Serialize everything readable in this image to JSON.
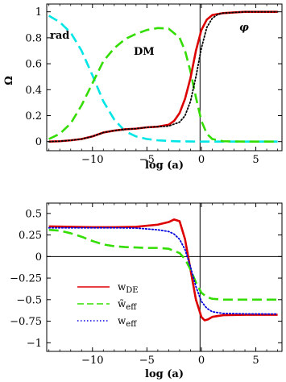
{
  "chart_data": [
    {
      "type": "line",
      "xlabel": "log (a)",
      "ylabel": "Ω",
      "xlim": [
        -14.2,
        7.4
      ],
      "ylim": [
        -0.07,
        1.06
      ],
      "xticks": [
        -10,
        -5,
        0,
        5
      ],
      "xtick_labels": [
        "−10",
        "−5",
        "0",
        "5"
      ],
      "yticks": [
        0,
        0.2,
        0.4,
        0.6,
        0.8,
        1
      ],
      "ytick_labels": [
        "0",
        "0.2",
        "0.4",
        "0.6",
        "0.8",
        "1"
      ],
      "annotations": [
        "rad",
        "DM",
        "φ"
      ],
      "grid": false,
      "series": [
        {
          "key": "rad",
          "style": "dashed",
          "color": "#00e5e5",
          "x": [
            -14,
            -13,
            -12,
            -11,
            -10,
            -9,
            -8,
            -7,
            -6,
            -5,
            -4,
            -3,
            -2,
            -1,
            0,
            2,
            4,
            7
          ],
          "y": [
            0.97,
            0.92,
            0.84,
            0.7,
            0.51,
            0.31,
            0.17,
            0.08,
            0.04,
            0.02,
            0.01,
            0.005,
            0.002,
            0.001,
            0,
            0,
            0,
            0
          ]
        },
        {
          "key": "dm",
          "style": "dashed",
          "color": "#33dd00",
          "x": [
            -14,
            -13,
            -12,
            -11,
            -10,
            -9,
            -8,
            -7,
            -6,
            -5,
            -4,
            -3,
            -2,
            -1.5,
            -1,
            -0.5,
            0,
            0.5,
            1,
            2,
            4,
            7
          ],
          "y": [
            0.02,
            0.06,
            0.14,
            0.28,
            0.45,
            0.62,
            0.72,
            0.79,
            0.83,
            0.86,
            0.875,
            0.87,
            0.8,
            0.7,
            0.54,
            0.34,
            0.16,
            0.06,
            0.02,
            0.003,
            0,
            0
          ]
        },
        {
          "key": "phi",
          "style": "solid",
          "color": "#dd0000",
          "x": [
            -14,
            -13,
            -12,
            -11,
            -10,
            -9,
            -8,
            -7,
            -6,
            -5,
            -4,
            -3,
            -2.5,
            -2,
            -1.5,
            -1,
            -0.5,
            0,
            0.5,
            1,
            2,
            3,
            4,
            7
          ],
          "y": [
            0,
            0.003,
            0.01,
            0.02,
            0.04,
            0.07,
            0.085,
            0.095,
            0.1,
            0.11,
            0.115,
            0.13,
            0.16,
            0.22,
            0.33,
            0.49,
            0.7,
            0.86,
            0.94,
            0.975,
            0.99,
            0.995,
            1,
            1
          ]
        },
        {
          "key": "phi_dotted",
          "style": "dotted",
          "color": "#000000",
          "x": [
            -14,
            -13,
            -12,
            -11,
            -10,
            -9,
            -8,
            -7,
            -6,
            -5,
            -4,
            -3,
            -2,
            -1.5,
            -1,
            -0.5,
            0,
            0.5,
            1,
            1.5,
            2,
            3,
            4,
            7
          ],
          "y": [
            0,
            0.003,
            0.01,
            0.02,
            0.04,
            0.07,
            0.085,
            0.095,
            0.1,
            0.11,
            0.115,
            0.12,
            0.15,
            0.2,
            0.31,
            0.5,
            0.72,
            0.88,
            0.95,
            0.98,
            0.99,
            0.995,
            1,
            1
          ]
        }
      ]
    },
    {
      "type": "line",
      "xlabel": "log (a)",
      "ylabel": "",
      "xlim": [
        -14.2,
        7.4
      ],
      "ylim": [
        -1.1,
        0.62
      ],
      "xticks": [
        -10,
        -5,
        0,
        5
      ],
      "xtick_labels": [
        "−10",
        "−5",
        "0",
        "5"
      ],
      "yticks": [
        0.5,
        0.25,
        0,
        -0.25,
        -0.5,
        -0.75,
        -1
      ],
      "ytick_labels": [
        "0.5",
        "0.25",
        "0",
        "−0.25",
        "−0.5",
        "−0.75",
        "−1"
      ],
      "grid": false,
      "series": [
        {
          "name": "w_DE",
          "legend_main": "w",
          "legend_sub": "DE",
          "tilde": false,
          "style": "solid",
          "color": "#dd0000",
          "x": [
            -14,
            -12,
            -10,
            -8,
            -6,
            -4,
            -3,
            -2.5,
            -2,
            -1.5,
            -1,
            -0.5,
            0,
            0.3,
            0.6,
            1,
            2,
            4,
            7
          ],
          "y": [
            0.35,
            0.345,
            0.34,
            0.34,
            0.345,
            0.37,
            0.4,
            0.43,
            0.41,
            0.2,
            -0.15,
            -0.5,
            -0.7,
            -0.74,
            -0.73,
            -0.7,
            -0.68,
            -0.675,
            -0.675
          ]
        },
        {
          "name": "w̃_eff",
          "legend_main": "w",
          "legend_sub": "eff",
          "tilde": true,
          "style": "dashed",
          "color": "#33dd00",
          "x": [
            -14,
            -13,
            -12,
            -11,
            -10,
            -9,
            -8,
            -7,
            -6,
            -5,
            -4,
            -3,
            -2,
            -1.5,
            -1,
            -0.5,
            0,
            0.5,
            1,
            2,
            4,
            7
          ],
          "y": [
            0.31,
            0.3,
            0.27,
            0.23,
            0.18,
            0.14,
            0.12,
            0.11,
            0.105,
            0.1,
            0.1,
            0.09,
            0.04,
            -0.03,
            -0.15,
            -0.3,
            -0.42,
            -0.47,
            -0.49,
            -0.5,
            -0.5,
            -0.5
          ]
        },
        {
          "name": "w_eff",
          "legend_main": "w",
          "legend_sub": "eff",
          "tilde": false,
          "style": "dotted",
          "color": "#0000dd",
          "x": [
            -14,
            -12,
            -10,
            -8,
            -6,
            -5,
            -4,
            -3,
            -2.5,
            -2,
            -1.5,
            -1,
            -0.5,
            0,
            0.5,
            1,
            2,
            4,
            7
          ],
          "y": [
            0.333,
            0.333,
            0.333,
            0.333,
            0.33,
            0.32,
            0.31,
            0.29,
            0.26,
            0.2,
            0.08,
            -0.12,
            -0.35,
            -0.52,
            -0.6,
            -0.64,
            -0.66,
            -0.665,
            -0.667
          ]
        }
      ]
    }
  ]
}
